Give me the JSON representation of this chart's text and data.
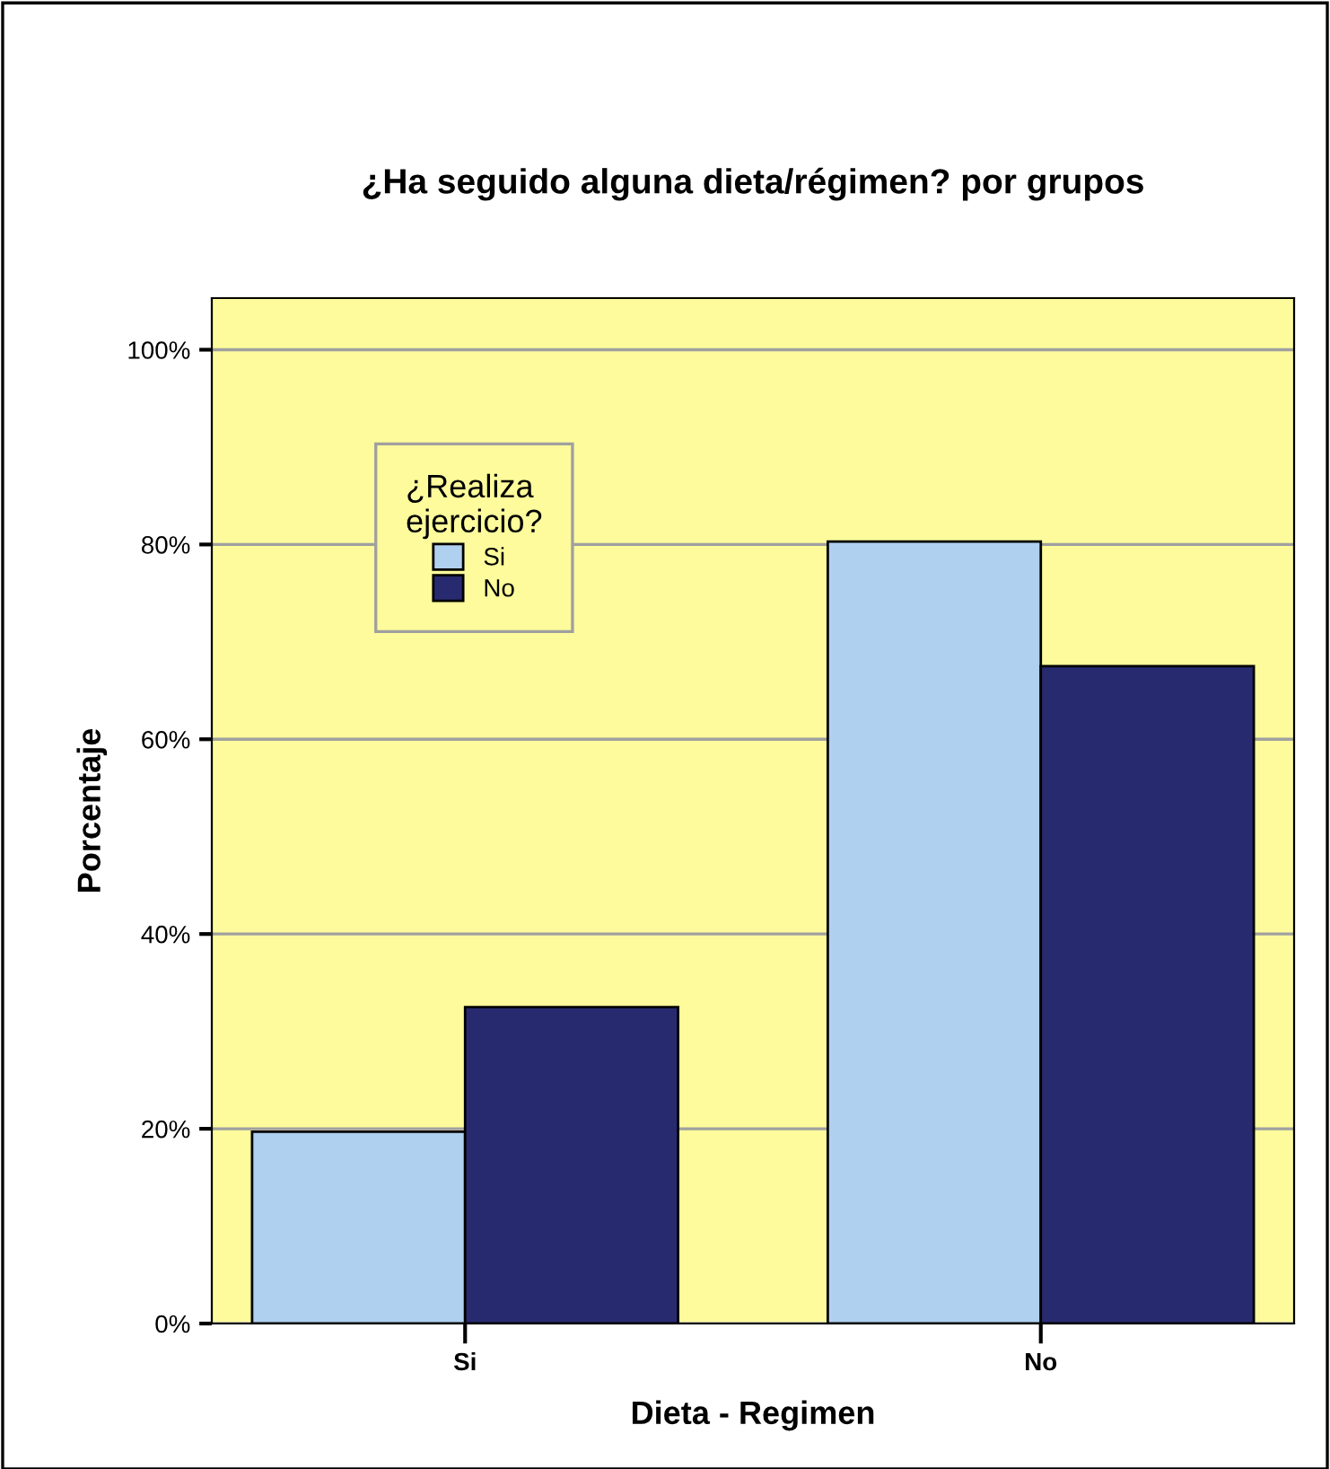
{
  "chart_data": {
    "type": "bar",
    "title": "¿Ha seguido alguna dieta/régimen? por grupos",
    "xlabel": "Dieta - Regimen",
    "ylabel": "Porcentaje",
    "legend_title": "¿Realiza\nejercicio?",
    "categories": [
      "Si",
      "No"
    ],
    "series": [
      {
        "name": "Si",
        "color": "#afd0ee",
        "values": [
          19.7,
          80.3
        ]
      },
      {
        "name": "No",
        "color": "#282a70",
        "values": [
          32.5,
          67.5
        ]
      }
    ],
    "ylim": [
      0,
      105.3
    ],
    "yticks": [
      {
        "value": 0,
        "label": "0%"
      },
      {
        "value": 20,
        "label": "20%"
      },
      {
        "value": 40,
        "label": "40%"
      },
      {
        "value": 60,
        "label": "60%"
      },
      {
        "value": 80,
        "label": "80%"
      },
      {
        "value": 100,
        "label": "100%"
      }
    ],
    "grid": "y",
    "legend": "top left"
  }
}
